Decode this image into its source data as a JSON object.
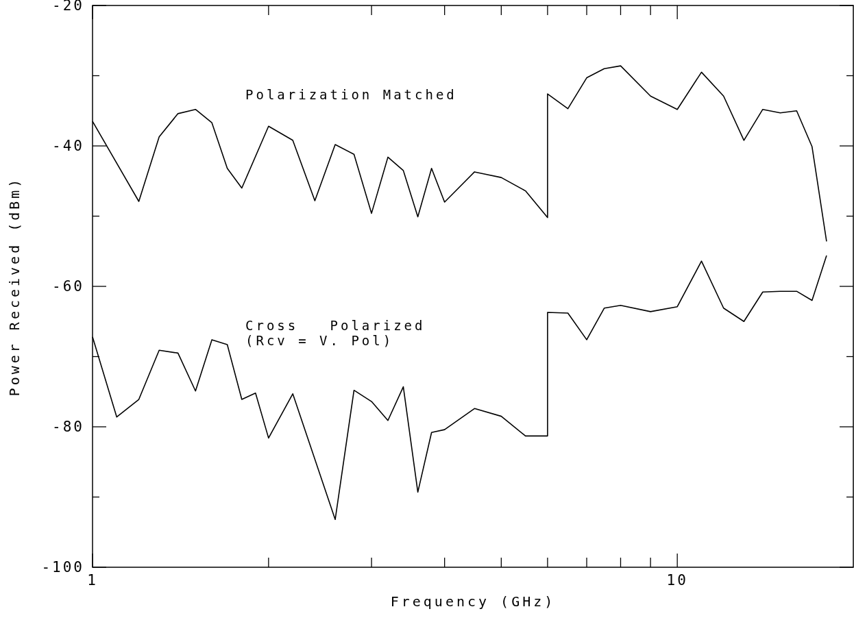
{
  "chart_data": {
    "type": "line",
    "xlabel": "Frequency (GHz)",
    "ylabel": "Power Received (dBm)",
    "log": "x",
    "grid": false,
    "marker": "none",
    "line_style": "solid",
    "xlim": [
      1,
      20
    ],
    "xticks": [
      {
        "value": 1,
        "label": "1"
      },
      {
        "value": 2,
        "label": null
      },
      {
        "value": 3,
        "label": null
      },
      {
        "value": 4,
        "label": null
      },
      {
        "value": 5,
        "label": null
      },
      {
        "value": 6,
        "label": null
      },
      {
        "value": 7,
        "label": null
      },
      {
        "value": 8,
        "label": null
      },
      {
        "value": 9,
        "label": null
      },
      {
        "value": 10,
        "label": "10"
      }
    ],
    "ylim": [
      -100,
      -20
    ],
    "yticks": [
      -100,
      {
        "value": -90,
        "label": null
      },
      -80,
      {
        "value": -70,
        "label": null
      },
      -60,
      {
        "value": -50,
        "label": null
      },
      -40,
      {
        "value": -30,
        "label": null
      },
      -20
    ],
    "series": [
      {
        "name": "Polarization Matched",
        "color": "#000000",
        "x": [
          1,
          1.2,
          1.3,
          1.4,
          1.5,
          1.6,
          1.7,
          1.8,
          2.0,
          2.2,
          2.4,
          2.6,
          2.8,
          3.0,
          3.2,
          3.4,
          3.6,
          3.8,
          4.0,
          4.5,
          5.0,
          5.5,
          6,
          6,
          6.5,
          7,
          7.5,
          8,
          9,
          10,
          11,
          12,
          13,
          14,
          15,
          16,
          17,
          18
        ],
        "values": [
          -36.5,
          -47.9,
          -38.7,
          -35.4,
          -34.8,
          -36.7,
          -43.2,
          -46.0,
          -37.2,
          -39.2,
          -47.8,
          -39.8,
          -41.2,
          -49.6,
          -41.6,
          -43.5,
          -50.1,
          -43.2,
          -48.0,
          -43.7,
          -44.5,
          -46.4,
          -50.2,
          -32.6,
          -34.7,
          -30.3,
          -29.0,
          -28.6,
          -32.9,
          -34.8,
          -29.5,
          -32.9,
          -39.2,
          -34.8,
          -35.3,
          -35.0,
          -40.1,
          -53.6
        ]
      },
      {
        "name": "Cross   Polarized\n(Rcv = V. Pol)",
        "color": "#000000",
        "x": [
          1,
          1.1,
          1.2,
          1.3,
          1.4,
          1.5,
          1.6,
          1.7,
          1.8,
          1.9,
          2.0,
          2.2,
          2.6,
          2.8,
          3.0,
          3.2,
          3.4,
          3.6,
          3.8,
          4.0,
          4.5,
          5.0,
          5.5,
          6,
          6,
          6.5,
          7,
          7.5,
          8,
          9,
          10,
          11,
          12,
          13,
          14,
          15,
          16,
          17,
          18
        ],
        "values": [
          -67.2,
          -78.6,
          -76.1,
          -69.1,
          -69.5,
          -74.9,
          -67.6,
          -68.3,
          -76.1,
          -75.2,
          -81.6,
          -75.3,
          -93.2,
          -74.8,
          -76.4,
          -79.1,
          -74.3,
          -89.3,
          -80.8,
          -80.4,
          -77.4,
          -78.5,
          -81.3,
          -81.3,
          -63.7,
          -63.8,
          -67.6,
          -63.1,
          -62.7,
          -63.6,
          -62.9,
          -56.4,
          -63.1,
          -65.0,
          -60.8,
          -60.7,
          -60.7,
          -62.0,
          -55.6
        ]
      }
    ]
  }
}
